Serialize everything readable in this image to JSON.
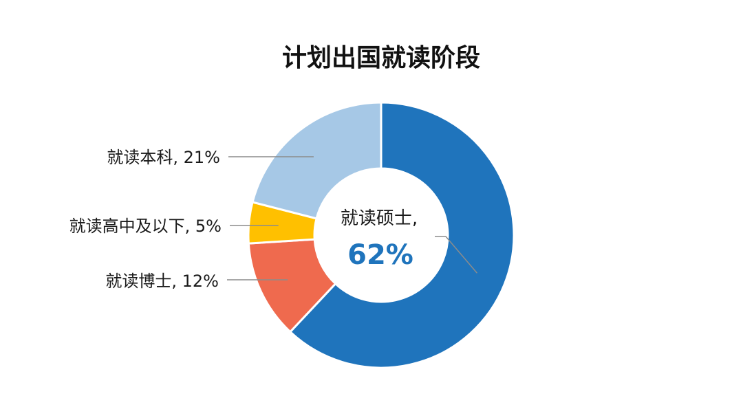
{
  "chart_data": {
    "type": "pie",
    "variant": "donut",
    "title": "计划出国就读阶段",
    "slices": [
      {
        "name": "就读硕士",
        "value": 62,
        "label": "就读硕士,",
        "value_label": "62%",
        "color": "#1F74BC"
      },
      {
        "name": "就读博士",
        "value": 12,
        "label": "就读博士, 12%",
        "color": "#EF6A4E"
      },
      {
        "name": "就读高中及以下",
        "value": 5,
        "label": "就读高中及以下, 5%",
        "color": "#FFC000"
      },
      {
        "name": "就读本科",
        "value": 21,
        "label": "就读本科, 21%",
        "color": "#A6C8E6"
      }
    ]
  }
}
